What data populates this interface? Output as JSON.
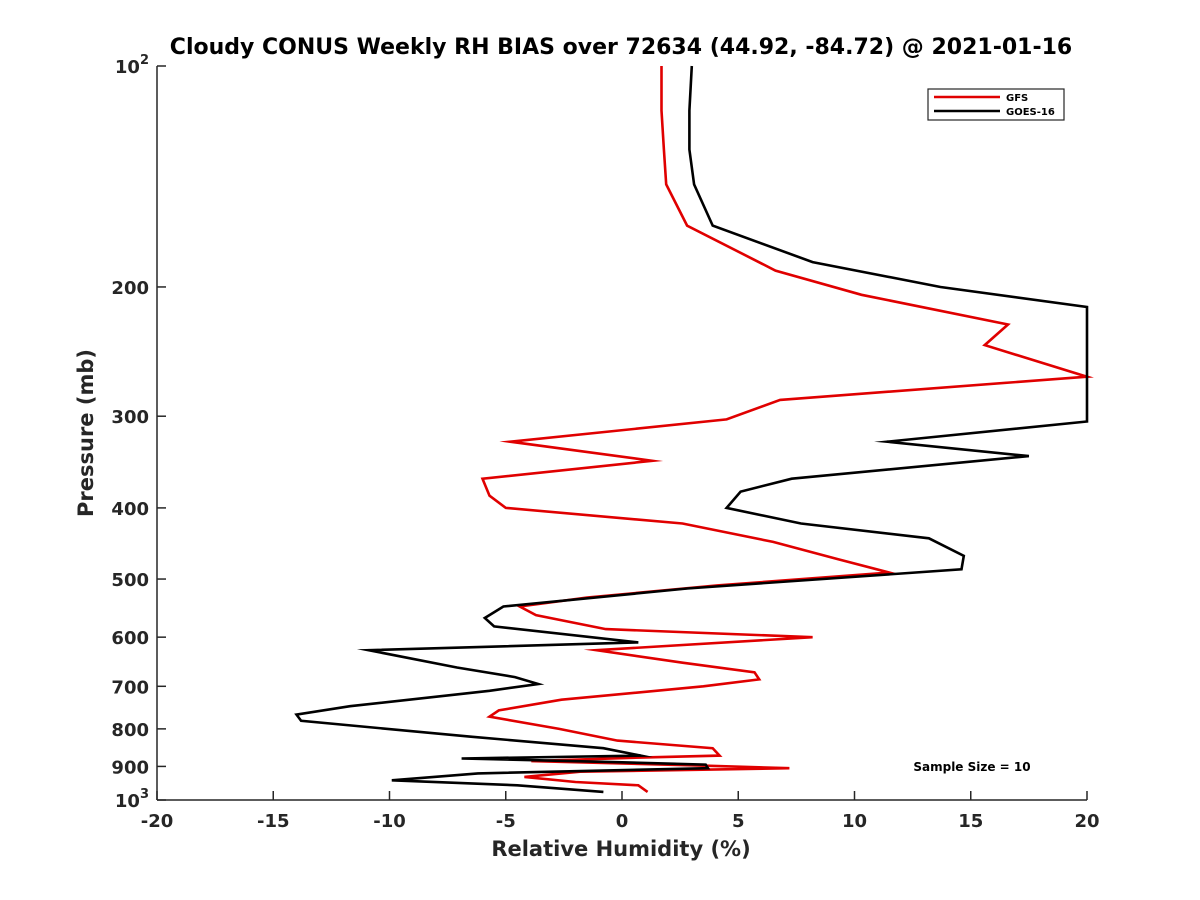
{
  "chart_data": {
    "type": "line",
    "title": "Cloudy CONUS Weekly RH BIAS over 72634 (44.92, -84.72) @ 2021-01-16",
    "xlabel": "Relative Humidity (%)",
    "ylabel": "Pressure (mb)",
    "xlim": [
      -20,
      20
    ],
    "ylim": [
      100,
      1000
    ],
    "yscale": "log",
    "y_reversed": true,
    "grid": false,
    "legend_position": "top-right",
    "x_ticks": [
      {
        "value": -20,
        "label": "-20"
      },
      {
        "value": -15,
        "label": "-15"
      },
      {
        "value": -10,
        "label": "-10"
      },
      {
        "value": -5,
        "label": "-5"
      },
      {
        "value": 0,
        "label": "0"
      },
      {
        "value": 5,
        "label": "5"
      },
      {
        "value": 10,
        "label": "10"
      },
      {
        "value": 15,
        "label": "15"
      },
      {
        "value": 20,
        "label": "20"
      }
    ],
    "y_ticks": [
      {
        "value": 100,
        "label": "10",
        "sup": "2"
      },
      {
        "value": 200,
        "label": "200",
        "sup": ""
      },
      {
        "value": 300,
        "label": "300",
        "sup": ""
      },
      {
        "value": 400,
        "label": "400",
        "sup": ""
      },
      {
        "value": 500,
        "label": "500",
        "sup": ""
      },
      {
        "value": 600,
        "label": "600",
        "sup": ""
      },
      {
        "value": 700,
        "label": "700",
        "sup": ""
      },
      {
        "value": 800,
        "label": "800",
        "sup": ""
      },
      {
        "value": 900,
        "label": "900",
        "sup": ""
      },
      {
        "value": 1000,
        "label": "10",
        "sup": "3"
      }
    ],
    "annotation": "Sample Size = 10",
    "series": [
      {
        "name": "GFS",
        "color": "#e00000",
        "points": [
          [
            1.7,
            100
          ],
          [
            1.7,
            115
          ],
          [
            1.8,
            130
          ],
          [
            1.9,
            145
          ],
          [
            2.8,
            165
          ],
          [
            6.6,
            190
          ],
          [
            10.3,
            205
          ],
          [
            16.6,
            225
          ],
          [
            15.6,
            240
          ],
          [
            20.0,
            265
          ],
          [
            6.8,
            285
          ],
          [
            4.5,
            303
          ],
          [
            -4.8,
            325
          ],
          [
            1.3,
            345
          ],
          [
            -6.0,
            365
          ],
          [
            -5.7,
            385
          ],
          [
            -5.0,
            400
          ],
          [
            2.6,
            420
          ],
          [
            6.5,
            445
          ],
          [
            9.3,
            470
          ],
          [
            11.5,
            490
          ],
          [
            4.1,
            510
          ],
          [
            -1.5,
            530
          ],
          [
            -4.4,
            545
          ],
          [
            -3.7,
            560
          ],
          [
            -0.7,
            585
          ],
          [
            8.2,
            600
          ],
          [
            -1.1,
            625
          ],
          [
            2.6,
            650
          ],
          [
            5.7,
            670
          ],
          [
            5.9,
            685
          ],
          [
            3.5,
            700
          ],
          [
            -2.6,
            730
          ],
          [
            -5.3,
            755
          ],
          [
            -5.7,
            770
          ],
          [
            -2.7,
            800
          ],
          [
            -0.2,
            830
          ],
          [
            3.9,
            850
          ],
          [
            4.2,
            870
          ],
          [
            1.0,
            875
          ],
          [
            -3.9,
            885
          ],
          [
            3.6,
            898
          ],
          [
            7.2,
            905
          ],
          [
            -1.8,
            915
          ],
          [
            -4.2,
            930
          ],
          [
            -2.0,
            945
          ],
          [
            0.7,
            955
          ],
          [
            1.0,
            970
          ],
          [
            1.1,
            975
          ]
        ]
      },
      {
        "name": "GOES-16",
        "color": "#000000",
        "points": [
          [
            3.0,
            100
          ],
          [
            2.9,
            115
          ],
          [
            2.9,
            130
          ],
          [
            3.1,
            145
          ],
          [
            3.9,
            165
          ],
          [
            8.2,
            185
          ],
          [
            13.7,
            200
          ],
          [
            20.0,
            213
          ],
          [
            20.0,
            305
          ],
          [
            11.4,
            325
          ],
          [
            17.5,
            340
          ],
          [
            7.3,
            365
          ],
          [
            5.1,
            380
          ],
          [
            4.5,
            400
          ],
          [
            7.7,
            420
          ],
          [
            13.2,
            440
          ],
          [
            14.7,
            465
          ],
          [
            14.6,
            485
          ],
          [
            2.8,
            515
          ],
          [
            -5.1,
            545
          ],
          [
            -5.9,
            565
          ],
          [
            -5.5,
            580
          ],
          [
            0.7,
            610
          ],
          [
            -10.9,
            625
          ],
          [
            -7.1,
            660
          ],
          [
            -4.6,
            680
          ],
          [
            -3.6,
            695
          ],
          [
            -5.7,
            710
          ],
          [
            -11.7,
            745
          ],
          [
            -14.0,
            765
          ],
          [
            -13.8,
            780
          ],
          [
            -6.5,
            820
          ],
          [
            -0.8,
            850
          ],
          [
            0.8,
            870
          ],
          [
            -6.9,
            878
          ],
          [
            -0.4,
            888
          ],
          [
            3.6,
            895
          ],
          [
            3.7,
            905
          ],
          [
            -6.2,
            920
          ],
          [
            -9.9,
            940
          ],
          [
            -4.5,
            955
          ],
          [
            -0.8,
            975
          ]
        ]
      }
    ]
  }
}
